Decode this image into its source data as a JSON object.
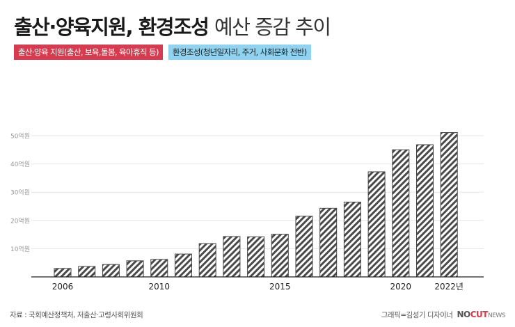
{
  "title": {
    "bold": "출산·양육지원, 환경조성",
    "light": "예산 증감 추이"
  },
  "legend": [
    {
      "label": "출산·양육 지원(출산, 보육,돌봄, 육아휴직 등)",
      "bg": "#d63b4f",
      "fg": "#ffffff"
    },
    {
      "label": "환경조성(청년일자리, 주거, 사회문화 전반)",
      "bg": "#8fd3f0",
      "fg": "#1a1a1a"
    }
  ],
  "source": "자료 : 국회예산정책처, 저출산·고령사회위원회",
  "credit": {
    "text": "그래픽=김성기 디자이너",
    "brand_a": "NO",
    "brand_b": "CUT",
    "brand_c": "NEWS"
  },
  "chart_data": {
    "type": "bar",
    "x": [
      2006,
      2007,
      2008,
      2009,
      2010,
      2011,
      2012,
      2013,
      2014,
      2015,
      2016,
      2017,
      2018,
      2019,
      2020,
      2021,
      2022
    ],
    "values": [
      3.0,
      3.7,
      4.4,
      5.7,
      6.2,
      8.1,
      11.8,
      14.3,
      14.2,
      15.1,
      21.5,
      24.3,
      26.5,
      37.2,
      45.0,
      46.8,
      51.1
    ],
    "ylim": [
      0,
      50
    ],
    "yticks": [
      10,
      20,
      30,
      40,
      50
    ],
    "ytick_labels": [
      "10억원",
      "20억원",
      "30억원",
      "40억원",
      "50억원"
    ],
    "xtick_labels": [
      {
        "x": 2006,
        "label": "2006"
      },
      {
        "x": 2010,
        "label": "2010"
      },
      {
        "x": 2015,
        "label": "2015"
      },
      {
        "x": 2020,
        "label": "2020"
      },
      {
        "x": 2022,
        "label": "2022년"
      }
    ],
    "bar_pattern": "diagonal-hatch",
    "bar_colors": {
      "fill": "#ffffff",
      "stripe": "#4a4a4a",
      "outline": "#444444"
    },
    "grid": true
  }
}
